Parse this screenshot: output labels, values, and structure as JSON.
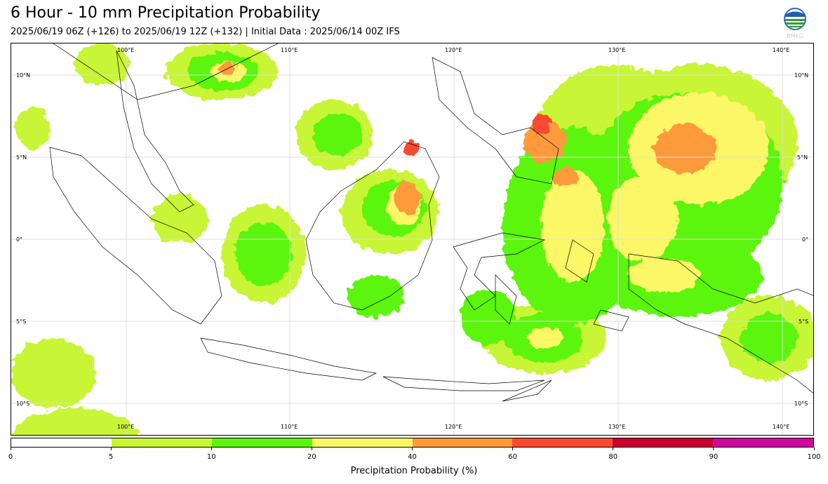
{
  "header": {
    "title": "6 Hour - 10 mm Precipitation Probability",
    "subtitle": "2025/06/19 06Z (+126) to 2025/06/19 12Z (+132) | Initial Data : 2025/06/14 00Z IFS",
    "logo_text": "BMKG"
  },
  "map": {
    "lon_labels": [
      "100°E",
      "110°E",
      "120°E",
      "130°E",
      "140°E"
    ],
    "lat_labels": [
      "10°N",
      "5°N",
      "0°",
      "5°S",
      "10°S"
    ],
    "lon_range": [
      93,
      142
    ],
    "lat_range": [
      -12,
      11.5
    ]
  },
  "colorbar": {
    "label": "Precipitation Probability (%)",
    "ticks": [
      "0",
      "5",
      "10",
      "20",
      "40",
      "60",
      "80",
      "90",
      "100"
    ],
    "colors": [
      "#ffffff",
      "#c8f534",
      "#5cf50a",
      "#fbf766",
      "#fd9a3a",
      "#f84a30",
      "#c90032",
      "#cb0a9c"
    ]
  },
  "icons": {
    "logo": "bmkg-logo-icon"
  }
}
